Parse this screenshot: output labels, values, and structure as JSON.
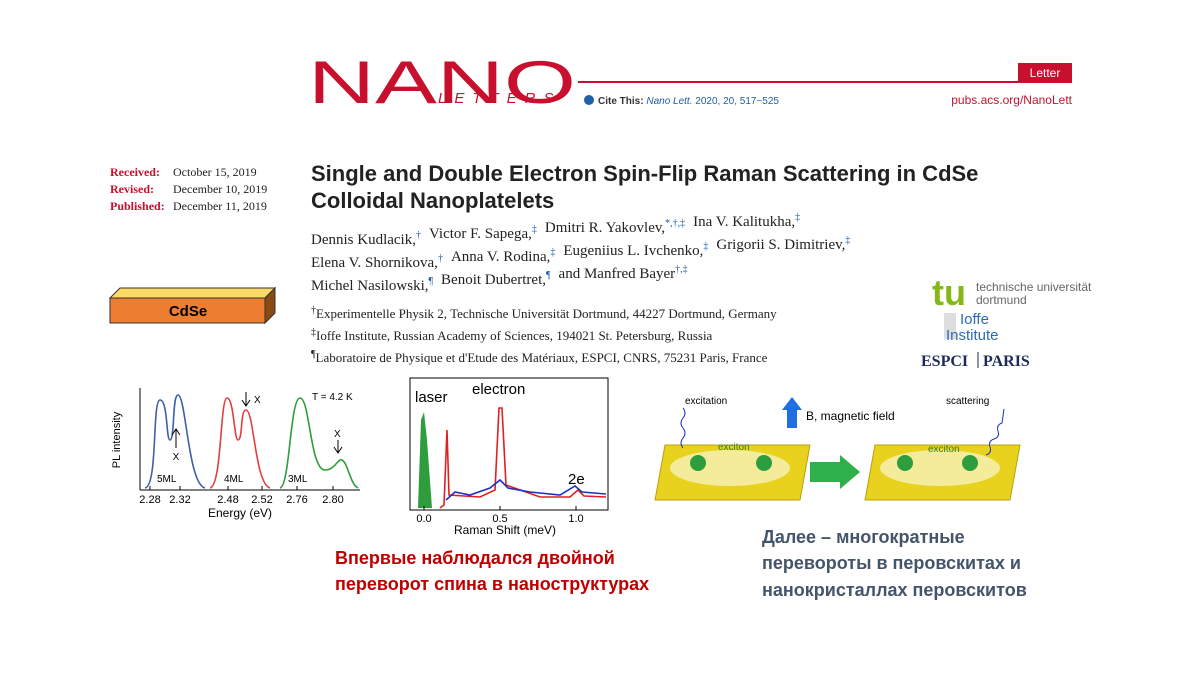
{
  "header": {
    "logo_main": "NANO",
    "logo_sub": "LETTERS",
    "cite_label": "Cite This:",
    "journal": "Nano Lett.",
    "citation": "2020, 20, 517−525",
    "badge": "Letter",
    "url": "pubs.acs.org/NanoLett"
  },
  "dates": [
    [
      "Received:",
      "October 15, 2019"
    ],
    [
      "Revised:",
      "December 10, 2019"
    ],
    [
      "Published:",
      "December 11, 2019"
    ]
  ],
  "title": [
    "Single and Double Electron Spin-Flip Raman Scattering in CdSe",
    "Colloidal Nanoplatelets"
  ],
  "authors": [
    [
      {
        "name": "Dennis Kudlacik,",
        "sup": "†"
      },
      {
        "name": "Victor F. Sapega,",
        "sup": "‡"
      },
      {
        "name": "Dmitri R. Yakovlev,",
        "sup": "*,†,‡"
      },
      {
        "name": "Ina V. Kalitukha,",
        "sup": "‡"
      }
    ],
    [
      {
        "name": "Elena V. Shornikova,",
        "sup": "†"
      },
      {
        "name": "Anna V. Rodina,",
        "sup": "‡"
      },
      {
        "name": "Eugeniius L. Ivchenko,",
        "sup": "‡"
      },
      {
        "name": "Grigorii S. Dimitriev,",
        "sup": "‡"
      }
    ],
    [
      {
        "name": "Michel Nasilowski,",
        "sup": "¶"
      },
      {
        "name": "Benoit Dubertret,",
        "sup": "¶"
      },
      {
        "name": "and Manfred Bayer",
        "sup": "†,‡"
      }
    ]
  ],
  "affiliations": [
    {
      "mark": "†",
      "text": "Experimentelle Physik 2, Technische Universität Dortmund, 44227 Dortmund, Germany"
    },
    {
      "mark": "‡",
      "text": "Ioffe Institute, Russian Academy of Sciences, 194021 St. Petersburg, Russia"
    },
    {
      "mark": "¶",
      "text": "Laboratoire de Physique et d'Etude des Matériaux, ESPCI, CNRS, 75231 Paris, France"
    }
  ],
  "logos": {
    "tu": "tu",
    "tu_line1": "technische universität",
    "tu_line2": "dortmund",
    "ioffe1": "Ioffe",
    "ioffe2": "Institute",
    "espci": "ESPCI",
    "paris": "PARIS"
  },
  "sample_label": "CdSe",
  "pl_figure": {
    "y_label": "PL intensity",
    "x_label": "Energy (eV)",
    "panels": [
      "5ML",
      "4ML",
      "3ML"
    ],
    "peak_label": "X",
    "temperature": "T = 4.2 K",
    "ticks": [
      "2.28",
      "2.32",
      "2.48",
      "2.52",
      "2.76",
      "2.80"
    ]
  },
  "raman_figure": {
    "labels": [
      "laser",
      "electron",
      "2e"
    ],
    "ticks": [
      "0.0",
      "0.5",
      "1.0"
    ],
    "x_label": "Raman Shift (meV)"
  },
  "scheme": {
    "excitation": "excitation",
    "scattering": "scattering",
    "field": "B, magnetic field",
    "exciton": "exciton"
  },
  "caption_red": [
    "Впервые наблюдался двойной",
    "переворот спина в наноструктурах"
  ],
  "caption_blue": [
    "Далее – многократные",
    "перевороты в перовскитах и",
    "нанокристаллах перовскитов"
  ]
}
